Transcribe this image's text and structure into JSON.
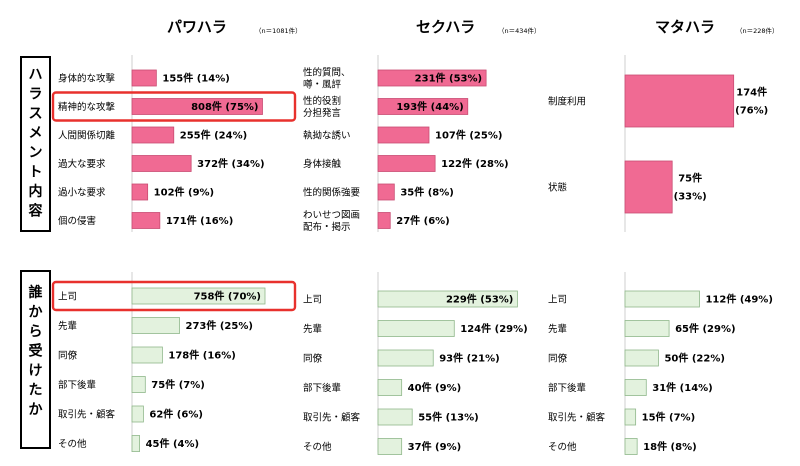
{
  "chart_data": [
    {
      "type": "bar",
      "panel": "パワハラ/ハラスメント内容",
      "title": "パワハラ",
      "n_label": "（n＝1081件）",
      "section_label": "ハラスメント内容",
      "categories": [
        "身体的な攻撃",
        "精神的な攻撃",
        "人間関係切離",
        "過大な要求",
        "過小な要求",
        "個の侵害"
      ],
      "values": [
        155,
        808,
        255,
        372,
        102,
        171
      ],
      "value_labels": [
        "155件 (14%)",
        "808件 (75%)",
        "255件 (24%)",
        "372件 (34%)",
        "102件 (9%)",
        "171件 (16%)"
      ],
      "percents": [
        14,
        75,
        24,
        34,
        9,
        16
      ],
      "highlighted": [
        1
      ],
      "color": "#f06a93"
    },
    {
      "type": "bar",
      "panel": "セクハラ/ハラスメント内容",
      "title": "セクハラ",
      "n_label": "（n＝434件）",
      "categories": [
        "性的質問、\n噂・風評",
        "性的役割\n分担発言",
        "執拗な誘い",
        "身体接触",
        "性的関係強要",
        "わいせつ図画\n配布・掲示"
      ],
      "values": [
        231,
        193,
        107,
        122,
        35,
        27
      ],
      "value_labels": [
        "231件 (53%)",
        "193件 (44%)",
        "107件 (25%)",
        "122件 (28%)",
        "35件 (8%)",
        "27件 (6%)"
      ],
      "percents": [
        53,
        44,
        25,
        28,
        8,
        6
      ],
      "color": "#f06a93"
    },
    {
      "type": "bar",
      "panel": "マタハラ/ハラスメント内容",
      "title": "マタハラ",
      "n_label": "（n＝228件）",
      "categories": [
        "制度利用",
        "状態"
      ],
      "values": [
        174,
        75
      ],
      "value_labels": [
        "174件\n(76%)",
        "75件\n(33%)"
      ],
      "percents": [
        76,
        33
      ],
      "color": "#f06a93"
    },
    {
      "type": "bar",
      "panel": "パワハラ/誰から受けたか",
      "section_label": "誰から受けたか",
      "categories": [
        "上司",
        "先輩",
        "同僚",
        "部下後輩",
        "取引先・顧客",
        "その他"
      ],
      "values": [
        758,
        273,
        178,
        75,
        62,
        45
      ],
      "value_labels": [
        "758件 (70%)",
        "273件 (25%)",
        "178件 (16%)",
        "75件 (7%)",
        "62件 (6%)",
        "45件 (4%)"
      ],
      "percents": [
        70,
        25,
        16,
        7,
        6,
        4
      ],
      "highlighted": [
        0
      ],
      "color": "#e3f2de"
    },
    {
      "type": "bar",
      "panel": "セクハラ/誰から受けたか",
      "categories": [
        "上司",
        "先輩",
        "同僚",
        "部下後輩",
        "取引先・顧客",
        "その他"
      ],
      "values": [
        229,
        124,
        93,
        40,
        55,
        37
      ],
      "value_labels": [
        "229件 (53%)",
        "124件 (29%)",
        "93件 (21%)",
        "40件 (9%)",
        "55件 (13%)",
        "37件 (9%)"
      ],
      "percents": [
        53,
        29,
        21,
        9,
        13,
        9
      ],
      "color": "#e3f2de"
    },
    {
      "type": "bar",
      "panel": "マタハラ/誰から受けたか",
      "categories": [
        "上司",
        "先輩",
        "同僚",
        "部下後輩",
        "取引先・顧客",
        "その他"
      ],
      "values": [
        112,
        65,
        50,
        31,
        15,
        18
      ],
      "value_labels": [
        "112件 (49%)",
        "65件 (29%)",
        "50件 (22%)",
        "31件 (14%)",
        "15件 (7%)",
        "18件 (8%)"
      ],
      "percents": [
        49,
        29,
        22,
        14,
        7,
        8
      ],
      "color": "#e3f2de"
    }
  ],
  "colors": {
    "pink_bar": "#f06a93",
    "pink_stroke": "#c94d73",
    "green_bar": "#e3f2de",
    "green_stroke": "#8fb78a",
    "highlight": "#e8312d"
  }
}
